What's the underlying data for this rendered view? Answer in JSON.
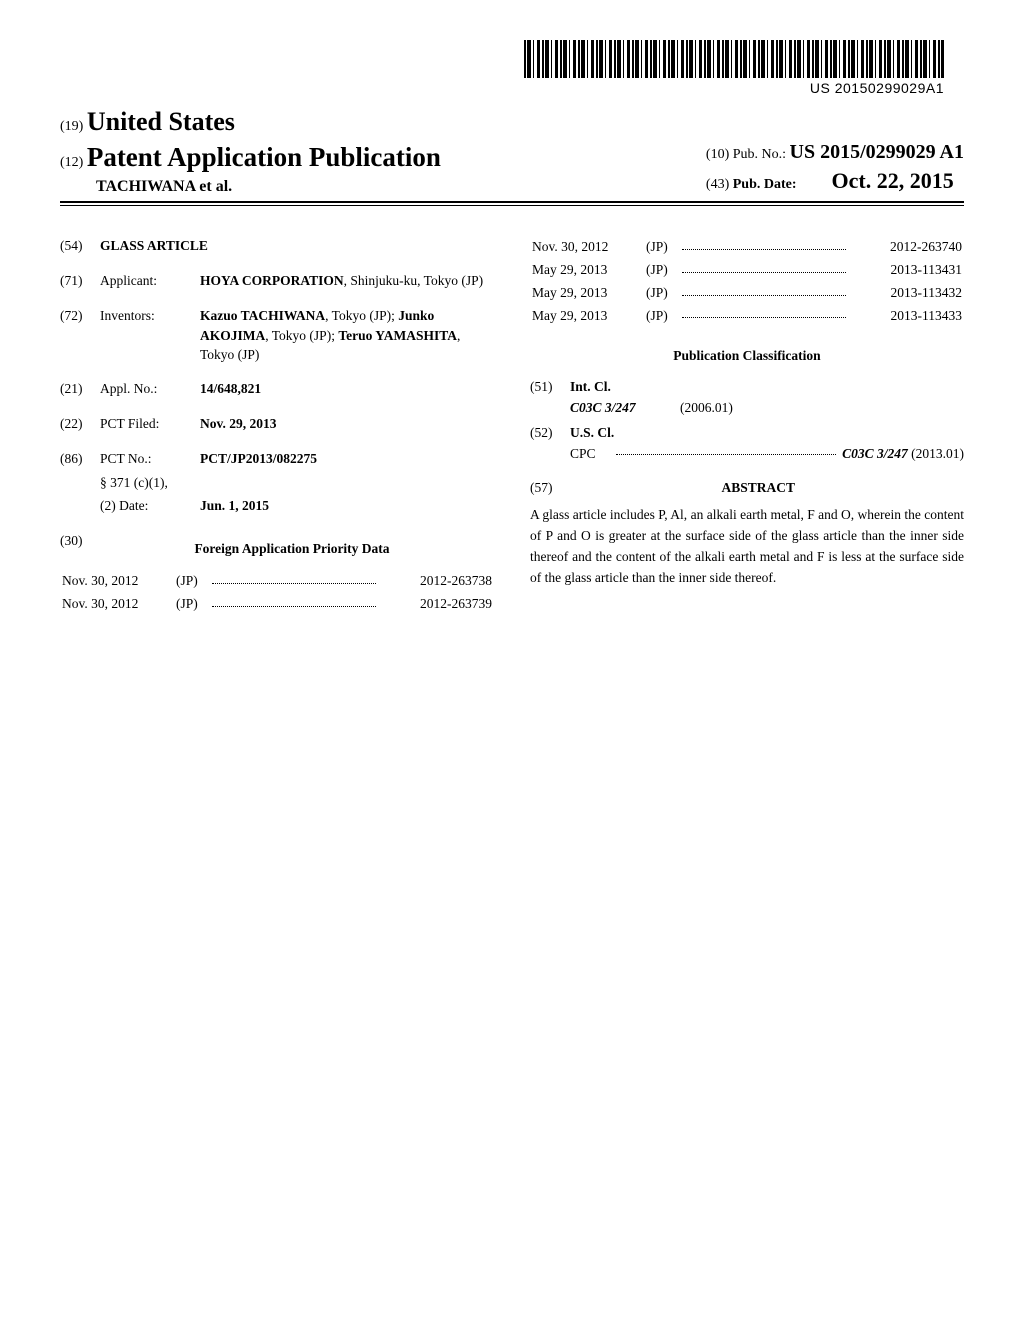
{
  "barcode_text": "US 20150299029A1",
  "header": {
    "country_prefix": "(19)",
    "country": "United States",
    "pub_prefix": "(12)",
    "pub_type": "Patent Application Publication",
    "authors_line": "TACHIWANA et al.",
    "pubno_prefix": "(10)",
    "pubno_label": "Pub. No.:",
    "pubno": "US 2015/0299029 A1",
    "pubdate_prefix": "(43)",
    "pubdate_label": "Pub. Date:",
    "pubdate": "Oct. 22, 2015"
  },
  "left_col": {
    "title_num": "(54)",
    "title": "GLASS ARTICLE",
    "applicant_num": "(71)",
    "applicant_label": "Applicant:",
    "applicant": "HOYA CORPORATION",
    "applicant_loc": ", Shinjuku-ku, Tokyo (JP)",
    "inventors_num": "(72)",
    "inventors_label": "Inventors:",
    "inventors_html": "Kazuo TACHIWANA, Tokyo (JP); Junko AKOJIMA, Tokyo (JP); Teruo YAMASHITA, Tokyo (JP)",
    "inv1_b": "Kazuo TACHIWANA",
    "inv1_r": ", Tokyo (JP);",
    "inv2_b": "Junko AKOJIMA",
    "inv2_r": ", Tokyo (JP); ",
    "inv3_b": "Teruo YAMASHITA",
    "inv3_r": ", Tokyo (JP)",
    "appl_num": "(21)",
    "appl_label": "Appl. No.:",
    "appl_val": "14/648,821",
    "pct_filed_num": "(22)",
    "pct_filed_label": "PCT Filed:",
    "pct_filed_val": "Nov. 29, 2013",
    "pct_no_num": "(86)",
    "pct_no_label": "PCT No.:",
    "pct_no_val": "PCT/JP2013/082275",
    "s371_label": "§ 371 (c)(1),",
    "s371_date_label": "(2) Date:",
    "s371_date_val": "Jun. 1, 2015",
    "foreign_num": "(30)",
    "foreign_head": "Foreign Application Priority Data",
    "priority_left": [
      {
        "date": "Nov. 30, 2012",
        "cc": "(JP)",
        "no": "2012-263738"
      },
      {
        "date": "Nov. 30, 2012",
        "cc": "(JP)",
        "no": "2012-263739"
      }
    ]
  },
  "right_col": {
    "priority_right": [
      {
        "date": "Nov. 30, 2012",
        "cc": "(JP)",
        "no": "2012-263740"
      },
      {
        "date": "May 29, 2013",
        "cc": "(JP)",
        "no": "2013-113431"
      },
      {
        "date": "May 29, 2013",
        "cc": "(JP)",
        "no": "2013-113432"
      },
      {
        "date": "May 29, 2013",
        "cc": "(JP)",
        "no": "2013-113433"
      }
    ],
    "pubclass_head": "Publication Classification",
    "intcl_num": "(51)",
    "intcl_label": "Int. Cl.",
    "intcl_code": "C03C 3/247",
    "intcl_ver": "(2006.01)",
    "uscl_num": "(52)",
    "uscl_label": "U.S. Cl.",
    "cpc_label": "CPC",
    "cpc_code": "C03C 3/247",
    "cpc_ver": " (2013.01)",
    "abstract_num": "(57)",
    "abstract_head": "ABSTRACT",
    "abstract": "A glass article includes P, Al, an alkali earth metal, F and O, wherein the content of P and O is greater at the surface side of the glass article than the inner side thereof and the content of the alkali earth metal and F is less at the surface side of the glass article than the inner side thereof."
  }
}
